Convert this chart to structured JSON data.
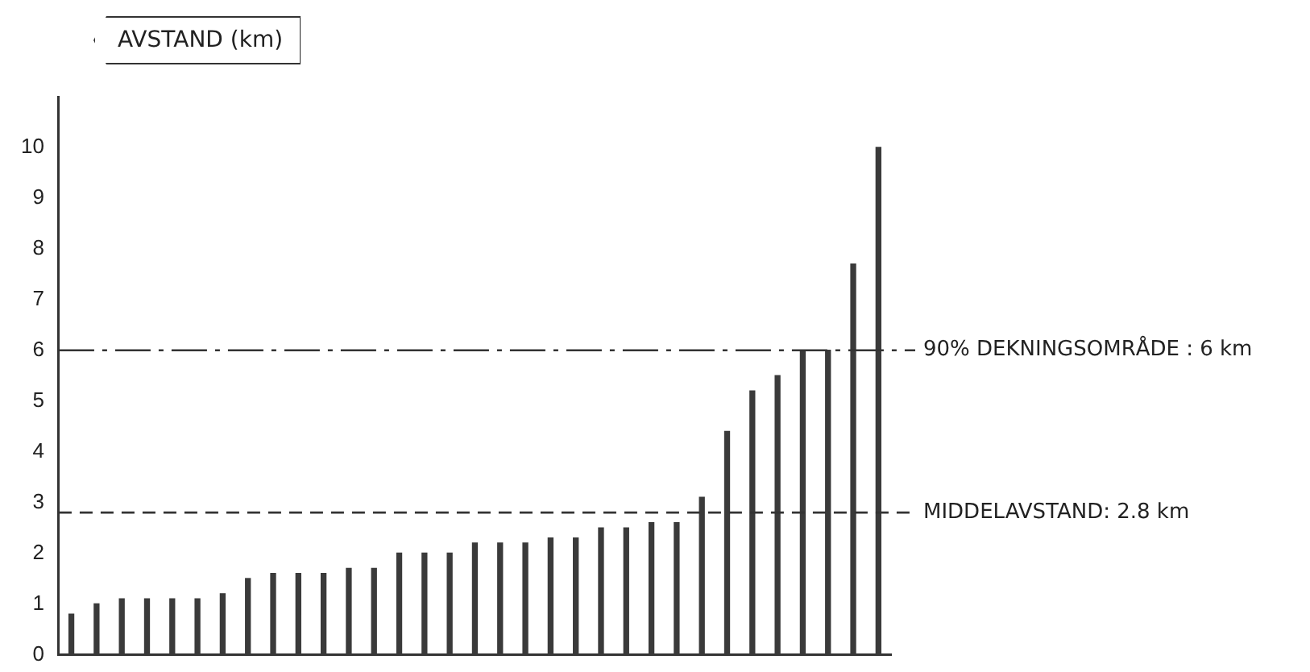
{
  "chart_data": {
    "type": "bar",
    "ylabel": "AVSTAND (km)",
    "categories": [
      null,
      null,
      null,
      null,
      null,
      null,
      null,
      null,
      null,
      null,
      null,
      null,
      null,
      null,
      null,
      null,
      null,
      null,
      null,
      null,
      null,
      null,
      null,
      null,
      null,
      null,
      null,
      null,
      null,
      null,
      null,
      null,
      null
    ],
    "values": [
      0.8,
      1.0,
      1.1,
      1.1,
      1.1,
      1.1,
      1.2,
      1.5,
      1.6,
      1.6,
      1.6,
      1.7,
      1.7,
      2.0,
      2.0,
      2.0,
      2.2,
      2.2,
      2.2,
      2.3,
      2.3,
      2.5,
      2.5,
      2.6,
      2.6,
      3.1,
      4.4,
      5.2,
      5.5,
      6.0,
      6.0,
      7.7,
      10.0
    ],
    "color": "#3a3a3a",
    "ylim": [
      0,
      11
    ],
    "yticks": [
      0,
      1,
      2,
      3,
      4,
      5,
      6,
      7,
      8,
      9,
      10
    ],
    "grid": false,
    "legend": false,
    "ref_lines": [
      {
        "axis": "y",
        "value": 6,
        "label": "90% DEKNINGSOMRÅDE : 6 km",
        "line_style": "dashdot",
        "color": "#333333"
      },
      {
        "axis": "y",
        "value": 2.8,
        "label": "MIDDELAVSTAND: 2.8 km",
        "line_style": "dashed",
        "color": "#333333"
      }
    ]
  }
}
